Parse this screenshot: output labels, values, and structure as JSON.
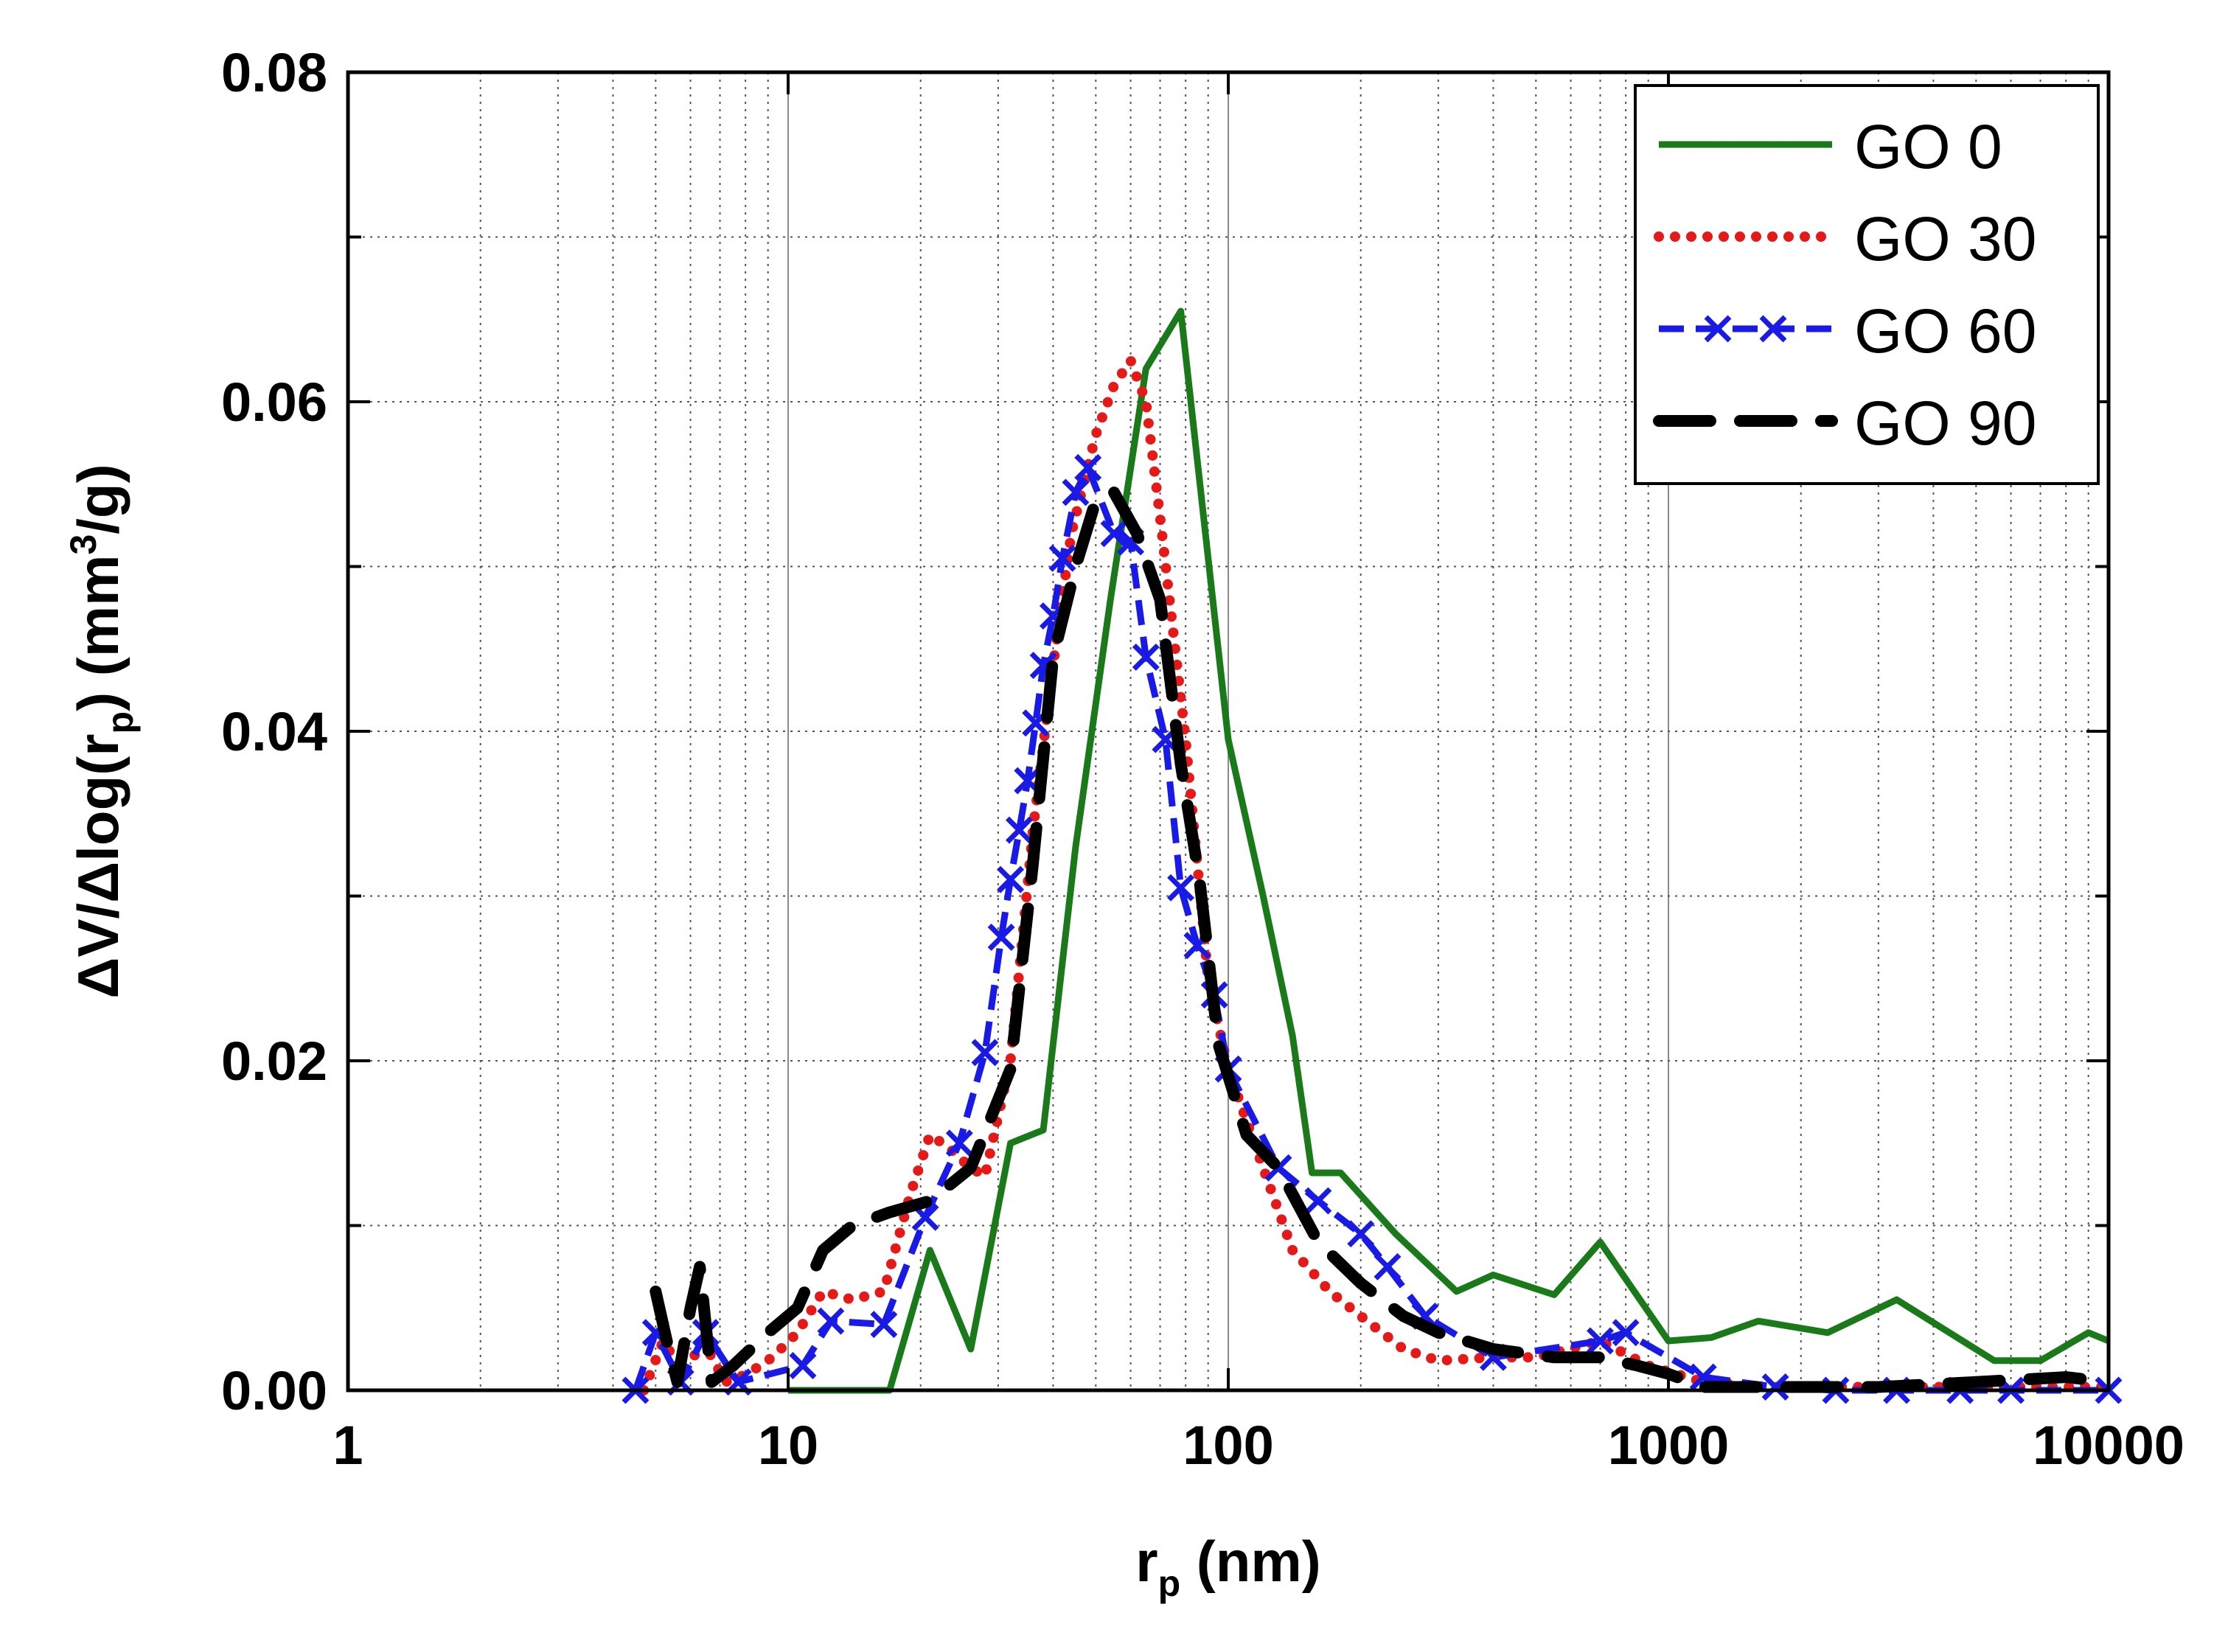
{
  "chart_data": {
    "type": "line",
    "title": "",
    "xlabel": "r",
    "xlabel_sub": "p",
    "xlabel_unit": " (nm)",
    "ylabel_prefix": "ΔV/Δlog(r",
    "ylabel_sub": "p",
    "ylabel_mid": ") (mm",
    "ylabel_sup": "3",
    "ylabel_suffix": "/g)",
    "xscale": "log",
    "xlim": [
      1,
      10000
    ],
    "ylim": [
      0,
      0.08
    ],
    "x_tick_labels": [
      "1",
      "10",
      "100",
      "1000",
      "10000"
    ],
    "x_tick_values": [
      1,
      10,
      100,
      1000,
      10000
    ],
    "y_tick_labels": [
      "0.00",
      "0.02",
      "0.04",
      "0.06",
      "0.08"
    ],
    "y_tick_values": [
      0,
      0.02,
      0.04,
      0.06,
      0.08
    ],
    "grid": true,
    "legend_position": "top-right",
    "series": [
      {
        "name": "GO 0",
        "color": "#1a7a1a",
        "style": "solid",
        "x": [
          10,
          17,
          21,
          26,
          32,
          38,
          45,
          54,
          65,
          78,
          100,
          120,
          140,
          155,
          180,
          240,
          330,
          400,
          550,
          700,
          1000,
          1250,
          1600,
          2300,
          3300,
          5500,
          7000,
          9000,
          10000
        ],
        "y": [
          0,
          0,
          0.0085,
          0.0025,
          0.015,
          0.0158,
          0.033,
          0.048,
          0.062,
          0.0655,
          0.0395,
          0.03,
          0.0215,
          0.0132,
          0.0132,
          0.0095,
          0.006,
          0.007,
          0.0058,
          0.009,
          0.003,
          0.0032,
          0.0042,
          0.0035,
          0.0055,
          0.0018,
          0.0018,
          0.0035,
          0.003
        ]
      },
      {
        "name": "GO 30",
        "color": "#e61919",
        "style": "dotted",
        "x": [
          4.7,
          5.2,
          5.8,
          6.4,
          7.2,
          8.1,
          9.2,
          10.5,
          12,
          14,
          16.5,
          19,
          21,
          23,
          26,
          28,
          32,
          36,
          40,
          44,
          50,
          55,
          60,
          65,
          70,
          80,
          90,
          100,
          120,
          140,
          170,
          200,
          250,
          300,
          400,
          500,
          700,
          900,
          1200,
          1700,
          2500,
          4000,
          6000,
          10000
        ],
        "y": [
          0,
          0.003,
          0.001,
          0.003,
          0.0005,
          0.001,
          0.002,
          0.0035,
          0.006,
          0.0055,
          0.006,
          0.012,
          0.0155,
          0.0148,
          0.0135,
          0.013,
          0.02,
          0.034,
          0.044,
          0.052,
          0.058,
          0.061,
          0.0625,
          0.06,
          0.053,
          0.0395,
          0.025,
          0.0195,
          0.0135,
          0.0085,
          0.006,
          0.0045,
          0.0025,
          0.0018,
          0.002,
          0.002,
          0.003,
          0.0015,
          0.0005,
          0.0002,
          0.0002,
          0.0002,
          0.0002,
          0.0002
        ]
      },
      {
        "name": "GO 60",
        "color": "#1a1ae6",
        "style": "dash-x",
        "x": [
          4.5,
          5,
          5.7,
          6.5,
          7.7,
          10.8,
          12.5,
          16.5,
          20.5,
          24.5,
          28,
          30.5,
          32,
          33.5,
          35,
          36.5,
          38,
          40,
          42,
          45,
          48,
          55,
          60,
          65,
          72,
          78,
          85,
          93,
          100,
          130,
          160,
          200,
          230,
          280,
          400,
          700,
          800,
          1200,
          1750,
          2400,
          3300,
          4600,
          6000,
          10000
        ],
        "y": [
          0,
          0.0035,
          0.0005,
          0.0035,
          0.0005,
          0.0015,
          0.0042,
          0.004,
          0.0105,
          0.015,
          0.0205,
          0.0275,
          0.031,
          0.034,
          0.037,
          0.0405,
          0.044,
          0.047,
          0.0505,
          0.0545,
          0.056,
          0.052,
          0.0515,
          0.0445,
          0.0395,
          0.0305,
          0.027,
          0.024,
          0.0195,
          0.0135,
          0.0115,
          0.0095,
          0.0075,
          0.0045,
          0.002,
          0.003,
          0.0035,
          0.0008,
          0.0002,
          0,
          0,
          0,
          0,
          0
        ]
      },
      {
        "name": "GO 90",
        "color": "#000000",
        "style": "dashed",
        "x": [
          5,
          5.3,
          5.6,
          6,
          6.3,
          6.7,
          7.5,
          9,
          10.5,
          12,
          14,
          17,
          21,
          26,
          32,
          36,
          40,
          45,
          50,
          55,
          62,
          70,
          78,
          86,
          95,
          110,
          130,
          160,
          200,
          250,
          300,
          400,
          550,
          700,
          850,
          1000,
          1200,
          2000,
          3000,
          5000,
          8000,
          10000
        ],
        "y": [
          0.006,
          0.003,
          0.0005,
          0.005,
          0.0075,
          0.0005,
          0.0015,
          0.0035,
          0.005,
          0.0085,
          0.01,
          0.0108,
          0.0115,
          0.0135,
          0.0195,
          0.032,
          0.0445,
          0.05,
          0.054,
          0.0545,
          0.052,
          0.048,
          0.038,
          0.031,
          0.021,
          0.0155,
          0.0135,
          0.009,
          0.0065,
          0.0045,
          0.0035,
          0.0025,
          0.002,
          0.002,
          0.0015,
          0.001,
          0.0002,
          0.0002,
          0.0002,
          0.0005,
          0.0008,
          0.0005
        ]
      }
    ]
  }
}
